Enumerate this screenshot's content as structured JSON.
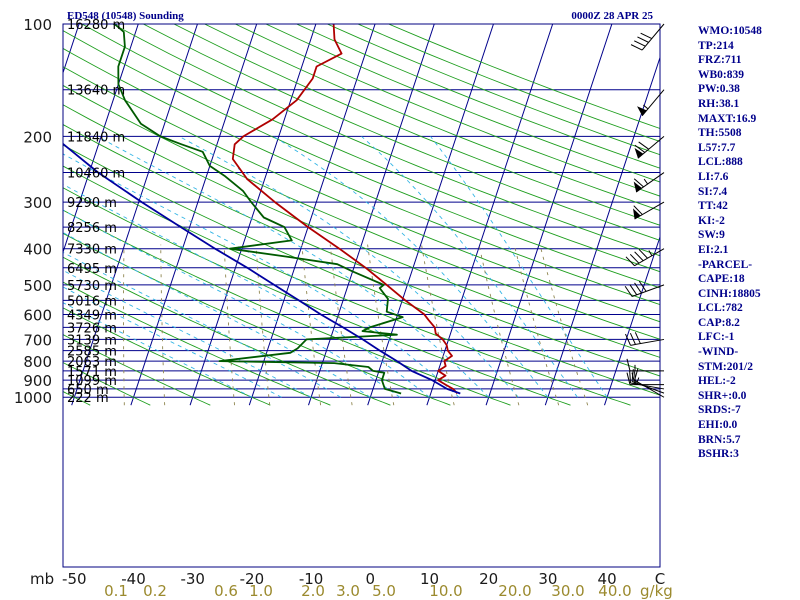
{
  "chart_data": {
    "type": "skew-t",
    "title_left": "ED548 (10548) Sounding",
    "title_right": "0000Z 28 APR 25",
    "ylabel": "mb",
    "mixing_ratio_unit": "g/kg",
    "pressure_ticks": [
      100,
      200,
      300,
      400,
      500,
      600,
      700,
      800,
      900,
      1000
    ],
    "temperature_ticks": [
      -50,
      -40,
      -30,
      -20,
      -10,
      0,
      10,
      20,
      30,
      40
    ],
    "temperature_end_label": "C",
    "mixing_ratio_ticks": [
      "0.1",
      "0.2",
      "0.6",
      "1.0",
      "2.0",
      "3.0",
      "5.0",
      "10.0",
      "20.0",
      "30.0",
      "40.0"
    ],
    "heights": [
      {
        "p": 100,
        "label": "16280 m"
      },
      {
        "p": 150,
        "label": "13640 m"
      },
      {
        "p": 200,
        "label": "11840 m"
      },
      {
        "p": 250,
        "label": "10460 m"
      },
      {
        "p": 300,
        "label": "9290 m"
      },
      {
        "p": 350,
        "label": "8256 m"
      },
      {
        "p": 400,
        "label": "7330 m"
      },
      {
        "p": 450,
        "label": "6495 m"
      },
      {
        "p": 500,
        "label": "5730 m"
      },
      {
        "p": 550,
        "label": "5016 m"
      },
      {
        "p": 600,
        "label": "4349 m"
      },
      {
        "p": 650,
        "label": "3726 m"
      },
      {
        "p": 700,
        "label": "3139 m"
      },
      {
        "p": 750,
        "label": "2585 m"
      },
      {
        "p": 800,
        "label": "2063 m"
      },
      {
        "p": 850,
        "label": "1571 m"
      },
      {
        "p": 900,
        "label": "1099 m"
      },
      {
        "p": 950,
        "label": "650 m"
      },
      {
        "p": 1000,
        "label": "222 m"
      }
    ],
    "series": [
      {
        "name": "Temperature",
        "color": "#b00000",
        "points": [
          [
            977,
            14.5
          ],
          [
            950,
            13.5
          ],
          [
            925,
            12.0
          ],
          [
            900,
            10.5
          ],
          [
            875,
            11.5
          ],
          [
            850,
            10.0
          ],
          [
            825,
            11.0
          ],
          [
            800,
            10.5
          ],
          [
            775,
            11.5
          ],
          [
            750,
            10.5
          ],
          [
            725,
            10.0
          ],
          [
            700,
            9.0
          ],
          [
            675,
            7.5
          ],
          [
            650,
            7.0
          ],
          [
            620,
            5.5
          ],
          [
            600,
            4.5
          ],
          [
            550,
            0.5
          ],
          [
            500,
            -3.5
          ],
          [
            450,
            -8.0
          ],
          [
            400,
            -13.5
          ],
          [
            350,
            -20.0
          ],
          [
            300,
            -27.0
          ],
          [
            260,
            -33.0
          ],
          [
            230,
            -36.5
          ],
          [
            210,
            -37.0
          ],
          [
            200,
            -36.0
          ],
          [
            180,
            -32.0
          ],
          [
            160,
            -29.0
          ],
          [
            140,
            -27.5
          ],
          [
            130,
            -27.5
          ],
          [
            120,
            -24.0
          ],
          [
            110,
            -26.0
          ],
          [
            100,
            -27.0
          ]
        ]
      },
      {
        "name": "Dewpoint",
        "color": "#005a00",
        "points": [
          [
            977,
            5.0
          ],
          [
            950,
            2.0
          ],
          [
            900,
            1.0
          ],
          [
            860,
            1.0
          ],
          [
            850,
            -1.0
          ],
          [
            830,
            -2.0
          ],
          [
            810,
            -8.0
          ],
          [
            800,
            -27.5
          ],
          [
            760,
            -16.0
          ],
          [
            740,
            -15.0
          ],
          [
            700,
            -14.0
          ],
          [
            680,
            1.0
          ],
          [
            665,
            -5.0
          ],
          [
            650,
            -4.0
          ],
          [
            610,
            1.0
          ],
          [
            590,
            -2.0
          ],
          [
            545,
            -2.5
          ],
          [
            510,
            -4.5
          ],
          [
            500,
            -4.0
          ],
          [
            460,
            -10.0
          ],
          [
            440,
            -13.0
          ],
          [
            420,
            -22.0
          ],
          [
            400,
            -32.0
          ],
          [
            380,
            -22.0
          ],
          [
            350,
            -24.0
          ],
          [
            330,
            -28.0
          ],
          [
            300,
            -31.0
          ],
          [
            280,
            -33.0
          ],
          [
            255,
            -37.0
          ],
          [
            240,
            -40.0
          ],
          [
            220,
            -42.0
          ],
          [
            210,
            -46.0
          ],
          [
            200,
            -50.0
          ],
          [
            185,
            -54.0
          ],
          [
            160,
            -58.0
          ],
          [
            145,
            -60.0
          ],
          [
            130,
            -61.0
          ],
          [
            115,
            -61.0
          ],
          [
            105,
            -62.0
          ],
          [
            100,
            -64.0
          ]
        ]
      },
      {
        "name": "Parcel",
        "color": "#0000a0",
        "points": [
          [
            977,
            15.0
          ],
          [
            950,
            12.5
          ],
          [
            900,
            9.5
          ],
          [
            850,
            5.5
          ],
          [
            800,
            2.5
          ],
          [
            750,
            -1.0
          ],
          [
            700,
            -4.5
          ],
          [
            650,
            -8.5
          ],
          [
            600,
            -13.0
          ],
          [
            550,
            -17.5
          ],
          [
            500,
            -22.5
          ],
          [
            450,
            -28.0
          ],
          [
            400,
            -34.5
          ],
          [
            350,
            -41.5
          ],
          [
            300,
            -49.5
          ],
          [
            250,
            -58.5
          ],
          [
            200,
            -68.0
          ],
          [
            150,
            -79.0
          ],
          [
            120,
            -86.0
          ]
        ]
      }
    ],
    "wind_barbs": [
      {
        "p": 1000,
        "dir": 300,
        "spd": 10
      },
      {
        "p": 975,
        "dir": 290,
        "spd": 15
      },
      {
        "p": 950,
        "dir": 280,
        "spd": 20
      },
      {
        "p": 925,
        "dir": 270,
        "spd": 20
      },
      {
        "p": 850,
        "dir": 270,
        "spd": 15
      },
      {
        "p": 700,
        "dir": 260,
        "spd": 30
      },
      {
        "p": 500,
        "dir": 250,
        "spd": 40
      },
      {
        "p": 400,
        "dir": 240,
        "spd": 45
      },
      {
        "p": 300,
        "dir": 240,
        "spd": 60
      },
      {
        "p": 250,
        "dir": 235,
        "spd": 65
      },
      {
        "p": 200,
        "dir": 230,
        "spd": 70
      },
      {
        "p": 150,
        "dir": 220,
        "spd": 55
      },
      {
        "p": 100,
        "dir": 220,
        "spd": 40
      }
    ]
  },
  "indices": [
    "WMO:10548",
    "TP:214",
    "FRZ:711",
    "WB0:839",
    "PW:0.38",
    "RH:38.1",
    "MAXT:16.9",
    "TH:5508",
    "L57:7.7",
    "LCL:888",
    "LI:7.6",
    "SI:7.4",
    "TT:42",
    "KI:-2",
    "SW:9",
    "EI:2.1",
    "-PARCEL-",
    "CAPE:18",
    "CINH:18805",
    "LCL:782",
    "CAP:8.2",
    "LFC:-1",
    "-WIND-",
    "STM:201/2",
    "HEL:-2",
    "SHR+:0.0",
    "SRDS:-7",
    "EHI:0.0",
    "BRN:5.7",
    "BSHR:3"
  ],
  "colors": {
    "isobar": "#00008b",
    "isotherm": "#00008b",
    "dry_adiabat": "#1e9e1e",
    "moist_adiabat": "#33b5e5",
    "mixing_ratio": "#8f8650",
    "frame": "#000080"
  }
}
